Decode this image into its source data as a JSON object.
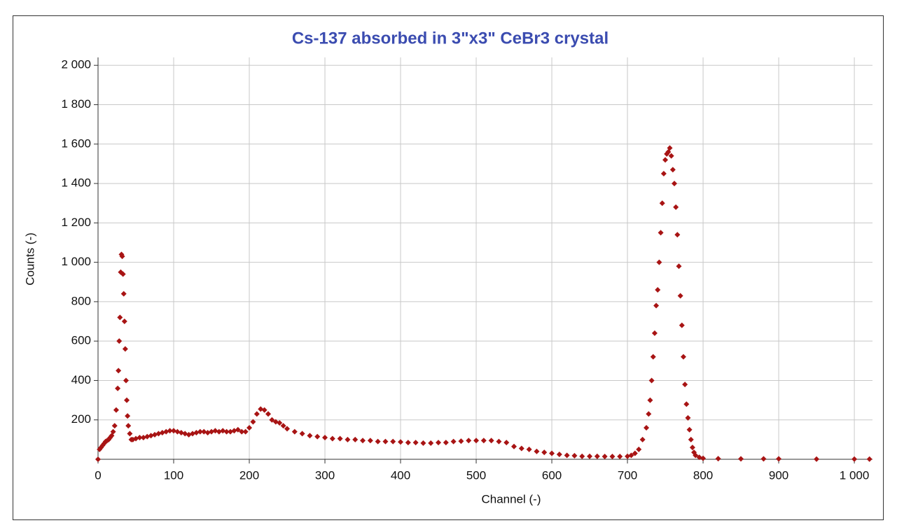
{
  "chart_data": {
    "type": "scatter",
    "title": "Cs-137 absorbed in 3\"x3\" CeBr3 crystal",
    "x_label": "Channel (-)",
    "y_label": "Counts (-)",
    "xlim": [
      0,
      1024
    ],
    "ylim": [
      0,
      2040
    ],
    "xticks": [
      0,
      100,
      200,
      300,
      400,
      500,
      600,
      700,
      800,
      900,
      {
        "value": 1000,
        "label": "1 000"
      }
    ],
    "yticks": [
      200,
      400,
      600,
      800,
      {
        "value": 1000,
        "label": "1 000"
      },
      {
        "value": 1200,
        "label": "1 200"
      },
      {
        "value": 1400,
        "label": "1 400"
      },
      {
        "value": 1600,
        "label": "1 600"
      },
      {
        "value": 1800,
        "label": "1 800"
      },
      {
        "value": 2000,
        "label": "2 000"
      }
    ],
    "grid": true,
    "x": [
      0,
      2,
      4,
      6,
      8,
      10,
      12,
      14,
      16,
      18,
      20,
      22,
      24,
      26,
      27,
      28,
      29,
      30,
      31,
      32,
      33,
      34,
      35,
      36,
      37,
      38,
      39,
      40,
      42,
      44,
      46,
      50,
      55,
      60,
      65,
      70,
      75,
      80,
      85,
      90,
      95,
      100,
      105,
      110,
      115,
      120,
      125,
      130,
      135,
      140,
      145,
      150,
      155,
      160,
      165,
      170,
      175,
      180,
      185,
      190,
      195,
      200,
      205,
      210,
      215,
      220,
      225,
      230,
      235,
      240,
      245,
      250,
      260,
      270,
      280,
      290,
      300,
      310,
      320,
      330,
      340,
      350,
      360,
      370,
      380,
      390,
      400,
      410,
      420,
      430,
      440,
      450,
      460,
      470,
      480,
      490,
      500,
      510,
      520,
      530,
      540,
      550,
      560,
      570,
      580,
      590,
      600,
      610,
      620,
      630,
      640,
      650,
      660,
      670,
      680,
      690,
      700,
      705,
      710,
      715,
      720,
      725,
      728,
      730,
      732,
      734,
      736,
      738,
      740,
      742,
      744,
      746,
      748,
      750,
      752,
      754,
      756,
      758,
      760,
      762,
      764,
      766,
      768,
      770,
      772,
      774,
      776,
      778,
      780,
      782,
      784,
      786,
      788,
      790,
      795,
      800,
      820,
      850,
      880,
      900,
      950,
      1000,
      1020
    ],
    "series": [
      {
        "name": "Counts",
        "color": "#a81414",
        "values": [
          0,
          50,
          60,
          70,
          80,
          90,
          95,
          100,
          110,
          120,
          140,
          170,
          250,
          360,
          450,
          600,
          720,
          950,
          1040,
          1030,
          940,
          840,
          700,
          560,
          400,
          300,
          220,
          170,
          130,
          100,
          100,
          105,
          110,
          110,
          115,
          120,
          125,
          130,
          135,
          140,
          145,
          145,
          140,
          135,
          130,
          125,
          130,
          135,
          140,
          140,
          135,
          140,
          145,
          140,
          145,
          140,
          140,
          145,
          150,
          140,
          140,
          160,
          190,
          230,
          255,
          250,
          230,
          200,
          190,
          185,
          170,
          155,
          140,
          130,
          120,
          115,
          110,
          105,
          105,
          100,
          100,
          95,
          95,
          90,
          90,
          90,
          88,
          85,
          85,
          82,
          82,
          85,
          85,
          90,
          92,
          95,
          95,
          95,
          95,
          90,
          85,
          65,
          55,
          50,
          40,
          35,
          30,
          25,
          20,
          18,
          15,
          15,
          15,
          14,
          14,
          14,
          15,
          20,
          30,
          50,
          100,
          160,
          230,
          300,
          400,
          520,
          640,
          780,
          860,
          1000,
          1150,
          1300,
          1450,
          1520,
          1550,
          1560,
          1580,
          1540,
          1470,
          1400,
          1280,
          1140,
          980,
          830,
          680,
          520,
          380,
          280,
          210,
          150,
          100,
          60,
          35,
          20,
          10,
          5,
          3,
          2,
          2,
          2,
          1,
          1,
          1
        ]
      }
    ]
  }
}
